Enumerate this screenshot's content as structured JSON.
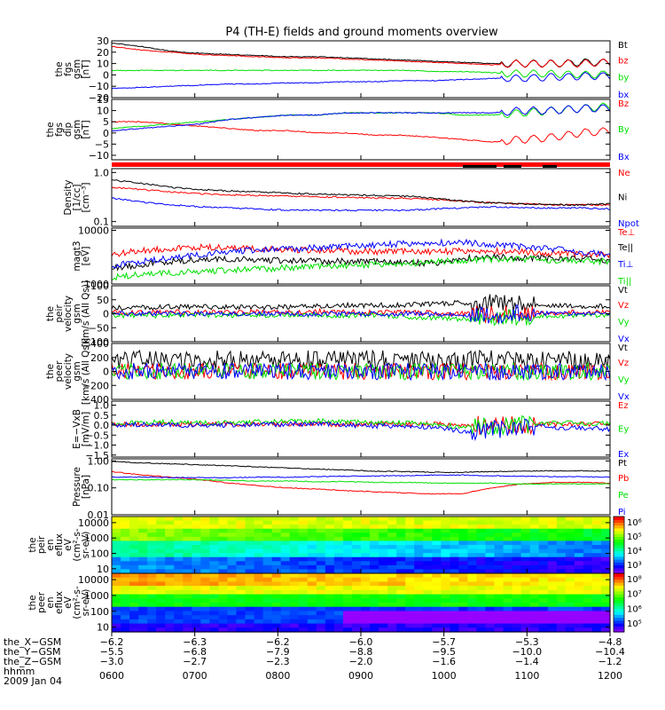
{
  "title": "P4 (TH-E) fields and ground moments overview",
  "colors": {
    "black": "#000000",
    "red": "#ff0000",
    "green": "#00e000",
    "blue": "#0000ff"
  },
  "chart_data": [
    {
      "type": "line",
      "id": "fgs_gsm",
      "ylabel_lines": [
        "the",
        "fgs",
        "gsm",
        "[nT]"
      ],
      "yticks": [
        "30",
        "20",
        "10",
        "0",
        "−10",
        "−20"
      ],
      "ylim": [
        -20,
        30
      ],
      "series": [
        {
          "name": "Bt",
          "color": "black",
          "values": [
            28,
            25,
            21,
            19,
            18,
            17,
            16,
            16,
            15,
            14,
            13,
            12,
            11,
            10,
            10,
            10,
            11,
            11
          ]
        },
        {
          "name": "bz",
          "color": "red",
          "values": [
            25,
            22,
            20,
            18,
            17,
            16,
            15,
            15,
            14,
            13,
            12,
            11,
            10,
            9,
            10,
            10,
            10,
            11
          ]
        },
        {
          "name": "by",
          "color": "green",
          "values": [
            4,
            4,
            4,
            4,
            4,
            4,
            4,
            4,
            4,
            4,
            4,
            3,
            3,
            2,
            1,
            1,
            0,
            1
          ]
        },
        {
          "name": "bx",
          "color": "blue",
          "values": [
            -12,
            -11,
            -10,
            -9,
            -8,
            -8,
            -7,
            -7,
            -6,
            -6,
            -5,
            -5,
            -4,
            -3,
            -3,
            -2,
            -1,
            -1
          ]
        }
      ]
    },
    {
      "type": "line",
      "id": "fgs_gsm_dip",
      "ylabel_lines": [
        "the",
        "fgs",
        "dip",
        "gsm",
        "[nT]"
      ],
      "yticks": [
        "15",
        "10",
        "5",
        "0",
        "−5",
        "−10"
      ],
      "ylim": [
        -12,
        15
      ],
      "series": [
        {
          "name": "Bz",
          "color": "red",
          "values": [
            5,
            5,
            4,
            3,
            2,
            1,
            1,
            0,
            0,
            -1,
            -1,
            -2,
            -3,
            -4,
            -3,
            -2,
            0,
            1
          ]
        },
        {
          "name": "By",
          "color": "green",
          "values": [
            2,
            3,
            4,
            5,
            6,
            7,
            8,
            8,
            9,
            9,
            9,
            9,
            8,
            8,
            9,
            10,
            11,
            12
          ]
        },
        {
          "name": "Bx",
          "color": "blue",
          "values": [
            1,
            2,
            3,
            4,
            6,
            7,
            8,
            8,
            9,
            9,
            9,
            9,
            9,
            9,
            10,
            10,
            11,
            11
          ]
        }
      ]
    },
    {
      "type": "line",
      "id": "density",
      "log": true,
      "ylabel_lines": [
        "Density",
        "[1/cc]",
        "[cm⁻³]"
      ],
      "yticks": [
        "1.0",
        "0.1"
      ],
      "ylim": [
        0.08,
        1.2
      ],
      "series": [
        {
          "name": "Ne",
          "color": "red",
          "values": [
            0.5,
            0.45,
            0.4,
            0.37,
            0.35,
            0.34,
            0.33,
            0.32,
            0.31,
            0.3,
            0.3,
            0.28,
            0.26,
            0.24,
            0.23,
            0.22,
            0.22,
            0.22
          ]
        },
        {
          "name": "Ni",
          "color": "black",
          "values": [
            0.7,
            0.6,
            0.5,
            0.45,
            0.42,
            0.4,
            0.38,
            0.36,
            0.35,
            0.34,
            0.33,
            0.3,
            0.26,
            0.24,
            0.23,
            0.22,
            0.22,
            0.23
          ]
        },
        {
          "name": "Npot",
          "color": "blue",
          "values": [
            0.3,
            0.25,
            0.22,
            0.2,
            0.19,
            0.18,
            0.17,
            0.17,
            0.17,
            0.17,
            0.17,
            0.18,
            0.19,
            0.2,
            0.19,
            0.19,
            0.19,
            0.18
          ]
        }
      ]
    },
    {
      "type": "line",
      "id": "magt3",
      "log": true,
      "ylabel_lines": [
        "magt3",
        "[eV]"
      ],
      "yticks": [
        "10000",
        "1000"
      ],
      "ylim": [
        1000,
        11000
      ],
      "series": [
        {
          "name": "Te⊥",
          "color": "red",
          "values": [
            3500,
            4200,
            4600,
            4800,
            4700,
            4500,
            4300,
            4200,
            4100,
            4000,
            4000,
            4000,
            4100,
            4100,
            4000,
            3800,
            3600,
            3500
          ]
        },
        {
          "name": "Te||",
          "color": "black",
          "values": [
            2000,
            2300,
            2600,
            2800,
            2900,
            2800,
            2700,
            2700,
            2600,
            2600,
            2500,
            2400,
            3000,
            3200,
            3100,
            3000,
            2900,
            2800
          ]
        },
        {
          "name": "Ti⊥",
          "color": "blue",
          "values": [
            2200,
            2600,
            3000,
            3500,
            4000,
            4300,
            4500,
            4700,
            5000,
            5300,
            5600,
            5800,
            6000,
            5500,
            5000,
            4500,
            4000,
            3500
          ]
        },
        {
          "name": "Ti||",
          "color": "green",
          "values": [
            1300,
            1500,
            1600,
            1700,
            1800,
            1900,
            2000,
            2100,
            2200,
            2300,
            2400,
            2600,
            2800,
            2900,
            2900,
            2800,
            2700,
            2600
          ]
        }
      ]
    },
    {
      "type": "line",
      "id": "peir_velocity",
      "ylabel_lines": [
        "the",
        "peir",
        "velocity",
        "gsm",
        "[km/s (All Qs)]"
      ],
      "yticks": [
        "100",
        "50",
        "0",
        "−50",
        "−100"
      ],
      "ylim": [
        -100,
        100
      ],
      "series": [
        {
          "name": "Vt",
          "color": "black",
          "values": [
            20,
            22,
            25,
            25,
            24,
            22,
            24,
            28,
            30,
            30,
            32,
            35,
            40,
            38,
            32,
            30,
            28,
            25
          ]
        },
        {
          "name": "Vz",
          "color": "red",
          "values": [
            5,
            4,
            6,
            5,
            4,
            6,
            5,
            8,
            6,
            5,
            5,
            4,
            0,
            -5,
            2,
            4,
            5,
            5
          ]
        },
        {
          "name": "Vy",
          "color": "green",
          "values": [
            -5,
            -6,
            -5,
            -4,
            -6,
            -5,
            -4,
            -5,
            -6,
            -5,
            -10,
            -15,
            -20,
            -15,
            -10,
            -8,
            -6,
            -5
          ]
        },
        {
          "name": "Vx",
          "color": "blue",
          "values": [
            0,
            1,
            0,
            -1,
            0,
            1,
            0,
            0,
            -1,
            0,
            0,
            -2,
            -5,
            -3,
            0,
            1,
            0,
            0
          ]
        }
      ]
    },
    {
      "type": "line",
      "id": "peer_velocity",
      "ylabel_lines": [
        "the",
        "peer",
        "velocity",
        "gsm",
        "[km/s (All Qs)]"
      ],
      "yticks": [
        "400",
        "200",
        "0",
        "−200",
        "−400"
      ],
      "ylim": [
        -400,
        400
      ],
      "series": [
        {
          "name": "Vt",
          "color": "black",
          "values": [
            150,
            160,
            150,
            155,
            160,
            150,
            155,
            160,
            165,
            160,
            155,
            150,
            160,
            165,
            155,
            150,
            155,
            150
          ]
        },
        {
          "name": "Vz",
          "color": "red",
          "values": [
            0,
            0,
            0,
            0,
            0,
            0,
            0,
            0,
            0,
            0,
            0,
            0,
            0,
            0,
            0,
            0,
            0,
            0
          ]
        },
        {
          "name": "Vy",
          "color": "green",
          "values": [
            0,
            0,
            0,
            0,
            0,
            0,
            0,
            0,
            0,
            0,
            0,
            0,
            0,
            0,
            0,
            0,
            0,
            0
          ]
        },
        {
          "name": "Vx",
          "color": "blue",
          "values": [
            0,
            0,
            0,
            0,
            0,
            0,
            0,
            0,
            0,
            0,
            0,
            0,
            0,
            0,
            0,
            0,
            0,
            0
          ]
        }
      ]
    },
    {
      "type": "line",
      "id": "efield",
      "ylabel_lines": [
        "E=−VxB",
        "[mV/m]"
      ],
      "yticks": [
        "1.0",
        "0.5",
        "0.0",
        "−0.5",
        "−1.0",
        "−1.5"
      ],
      "ylim": [
        -1.6,
        1.2
      ],
      "series": [
        {
          "name": "Ez",
          "color": "red",
          "values": [
            0.05,
            0.05,
            0.04,
            0.05,
            0.06,
            0.05,
            0.05,
            0.05,
            0.04,
            0.05,
            0.05,
            0.04,
            0.0,
            0.02,
            0.04,
            0.05,
            0.05,
            0.05
          ]
        },
        {
          "name": "Ey",
          "color": "green",
          "values": [
            0.1,
            0.12,
            0.15,
            0.1,
            0.12,
            0.15,
            0.18,
            0.2,
            0.15,
            0.12,
            0.1,
            0.05,
            -0.1,
            0.0,
            0.05,
            0.1,
            0.1,
            0.08
          ]
        },
        {
          "name": "Ex",
          "color": "blue",
          "values": [
            0.0,
            0.02,
            0.0,
            -0.02,
            0.0,
            0.02,
            0.05,
            0.05,
            0.0,
            -0.05,
            -0.05,
            -0.1,
            -0.3,
            -0.2,
            -0.1,
            -0.1,
            -0.15,
            -0.2
          ]
        }
      ]
    },
    {
      "type": "line",
      "id": "pressure",
      "log": true,
      "ylabel_lines": [
        "Pressure",
        "[nPa]"
      ],
      "yticks": [
        "1.00",
        "0.10",
        "0.01"
      ],
      "ylim": [
        0.01,
        1.2
      ],
      "series": [
        {
          "name": "Pt",
          "color": "black",
          "values": [
            0.95,
            0.85,
            0.78,
            0.72,
            0.66,
            0.6,
            0.55,
            0.5,
            0.46,
            0.42,
            0.4,
            0.38,
            0.38,
            0.4,
            0.42,
            0.43,
            0.43,
            0.42
          ]
        },
        {
          "name": "Pb",
          "color": "red",
          "values": [
            0.4,
            0.3,
            0.25,
            0.2,
            0.15,
            0.12,
            0.1,
            0.09,
            0.08,
            0.07,
            0.065,
            0.06,
            0.06,
            0.1,
            0.14,
            0.16,
            0.16,
            0.15
          ]
        },
        {
          "name": "Pe",
          "color": "green",
          "values": [
            0.2,
            0.2,
            0.2,
            0.2,
            0.19,
            0.18,
            0.18,
            0.17,
            0.17,
            0.16,
            0.16,
            0.15,
            0.15,
            0.15,
            0.14,
            0.14,
            0.14,
            0.14
          ]
        },
        {
          "name": "Pi",
          "color": "blue",
          "values": [
            0.25,
            0.25,
            0.24,
            0.24,
            0.24,
            0.25,
            0.25,
            0.26,
            0.27,
            0.28,
            0.28,
            0.3,
            0.3,
            0.28,
            0.27,
            0.26,
            0.26,
            0.25
          ]
        }
      ]
    },
    {
      "type": "heatmap",
      "id": "peir_spec",
      "ylabel_lines": [
        "the",
        "peir",
        "en",
        "eflux",
        "eV",
        "(cm²-s-",
        "sr-eV)"
      ],
      "yticks": [
        "10000",
        "1000",
        "100",
        "10"
      ],
      "ylim": [
        5,
        25000
      ],
      "colorbar_ticks": [
        "10⁶",
        "10⁵",
        "10⁴",
        "10³"
      ]
    },
    {
      "type": "heatmap",
      "id": "peer_spec",
      "ylabel_lines": [
        "the",
        "peer",
        "en",
        "eflux",
        "eV",
        "(cm²-s-",
        "sr-eV)"
      ],
      "yticks": [
        "10000",
        "1000",
        "100",
        "10"
      ],
      "ylim": [
        5,
        25000
      ],
      "colorbar_ticks": [
        "10⁸",
        "10⁷",
        "10⁶",
        "10⁵"
      ]
    }
  ],
  "xaxis": {
    "ticks": [
      "0600",
      "0700",
      "0800",
      "0900",
      "1000",
      "1100",
      "1200"
    ],
    "rows": [
      {
        "label": "the_X−GSM",
        "values": [
          "−6.2",
          "−6.3",
          "−6.2",
          "−6.0",
          "−5.7",
          "−5.3",
          "−4.8"
        ]
      },
      {
        "label": "the_Y−GSM",
        "values": [
          "−5.5",
          "−6.8",
          "−7.9",
          "−8.8",
          "−9.5",
          "−10.0",
          "−10.4"
        ]
      },
      {
        "label": "the_Z−GSM",
        "values": [
          "−3.0",
          "−2.7",
          "−2.3",
          "−2.0",
          "−1.6",
          "−1.4",
          "−1.2"
        ]
      }
    ],
    "time_label": "hhmm",
    "date": "2009 Jan 04"
  }
}
